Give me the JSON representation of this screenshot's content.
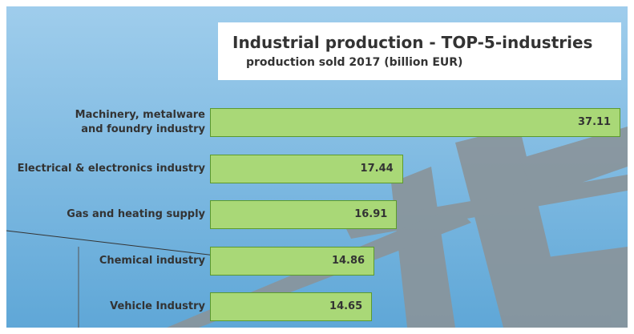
{
  "chart_data": {
    "type": "bar",
    "orientation": "horizontal",
    "title": "Industrial production - TOP-5-industries",
    "subtitle": "production sold 2017 (billion EUR)",
    "categories": [
      "Machinery, metalware\nand foundry industry",
      "Electrical & electronics industry",
      "Gas and heating supply",
      "Chemical industry",
      "Vehicle Industry"
    ],
    "values": [
      37.11,
      17.44,
      16.91,
      14.86,
      14.65
    ],
    "color": "#a9d877"
  }
}
